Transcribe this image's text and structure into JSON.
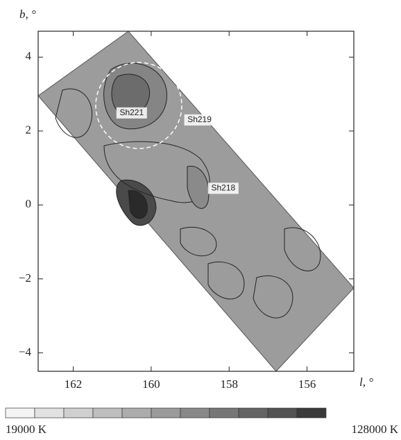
{
  "chart_data": {
    "type": "contour-map",
    "xlabel": "l, °",
    "ylabel": "b, °",
    "xlim": [
      162.9,
      154.8
    ],
    "ylim": [
      -4.5,
      4.7
    ],
    "xticks": [
      162,
      160,
      158,
      156
    ],
    "yticks": [
      {
        "value": -4,
        "label": "−4"
      },
      {
        "value": -2,
        "label": "−2"
      },
      0,
      2,
      4
    ],
    "annotations": [
      {
        "text": "Sh221",
        "x": 160.5,
        "y": 2.49
      },
      {
        "text": "Sh219",
        "x": 158.76,
        "y": 2.3
      },
      {
        "text": "Sh218",
        "x": 158.15,
        "y": 0.45
      }
    ],
    "colorbar": {
      "colors": [
        "#f4f4f4",
        "#e2e2e2",
        "#d0d0d0",
        "#bebebe",
        "#acacac",
        "#9a9a9a",
        "#888888",
        "#767676",
        "#646464",
        "#525252",
        "#3a3a3a"
      ],
      "ticks": [
        {
          "value": 19000,
          "label": "19000 K"
        },
        {
          "value": 128000,
          "label": "128000 K"
        }
      ]
    }
  }
}
